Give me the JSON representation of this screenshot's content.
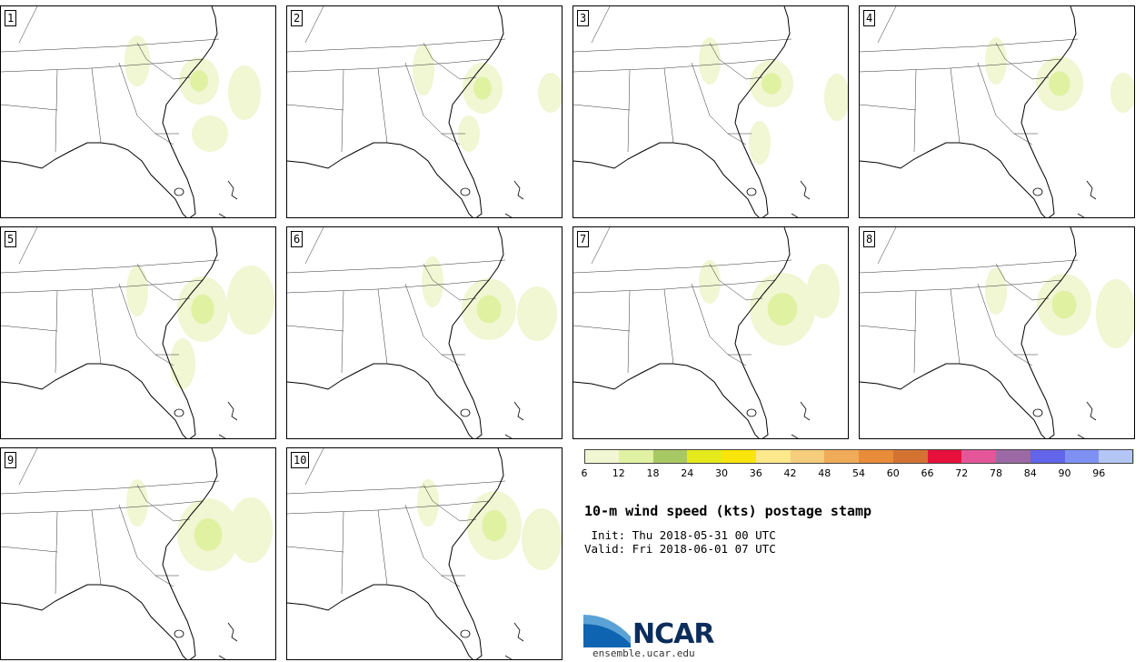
{
  "members": [
    {
      "label": "1",
      "blobs": [
        [
          218,
          82,
          22,
          26
        ],
        [
          268,
          95,
          18,
          30
        ],
        [
          150,
          60,
          14,
          28
        ],
        [
          230,
          140,
          20,
          20
        ]
      ]
    },
    {
      "label": "2",
      "blobs": [
        [
          215,
          90,
          22,
          28
        ],
        [
          290,
          95,
          14,
          22
        ],
        [
          150,
          70,
          12,
          28
        ],
        [
          200,
          140,
          12,
          20
        ]
      ]
    },
    {
      "label": "3",
      "blobs": [
        [
          218,
          85,
          24,
          26
        ],
        [
          290,
          100,
          14,
          26
        ],
        [
          150,
          60,
          12,
          26
        ],
        [
          205,
          150,
          12,
          24
        ]
      ]
    },
    {
      "label": "4",
      "blobs": [
        [
          220,
          85,
          26,
          30
        ],
        [
          290,
          95,
          14,
          22
        ],
        [
          150,
          60,
          12,
          26
        ]
      ]
    },
    {
      "label": "5",
      "blobs": [
        [
          222,
          90,
          28,
          36
        ],
        [
          275,
          80,
          26,
          38
        ],
        [
          150,
          70,
          12,
          28
        ],
        [
          200,
          150,
          14,
          28
        ]
      ]
    },
    {
      "label": "6",
      "blobs": [
        [
          222,
          90,
          30,
          34
        ],
        [
          275,
          95,
          22,
          30
        ],
        [
          160,
          60,
          12,
          28
        ]
      ]
    },
    {
      "label": "7",
      "blobs": [
        [
          230,
          90,
          36,
          40
        ],
        [
          275,
          70,
          18,
          30
        ],
        [
          150,
          60,
          12,
          24
        ]
      ]
    },
    {
      "label": "8",
      "blobs": [
        [
          225,
          85,
          30,
          34
        ],
        [
          282,
          95,
          22,
          38
        ],
        [
          150,
          70,
          12,
          26
        ]
      ]
    },
    {
      "label": "9",
      "blobs": [
        [
          228,
          95,
          34,
          40
        ],
        [
          275,
          90,
          24,
          36
        ],
        [
          150,
          60,
          12,
          26
        ]
      ]
    },
    {
      "label": "10",
      "blobs": [
        [
          228,
          85,
          30,
          38
        ],
        [
          280,
          100,
          22,
          34
        ],
        [
          155,
          60,
          12,
          26
        ]
      ]
    }
  ],
  "colorbar": {
    "colors": [
      "#f1f6d3",
      "#e0f1a2",
      "#a8c864",
      "#e4ea1b",
      "#f9e50c",
      "#fbe98b",
      "#f5cd7c",
      "#f0ab59",
      "#e98c39",
      "#d47232",
      "#e8113d",
      "#e35799",
      "#9b69a4",
      "#6264ea",
      "#7e91f3",
      "#b3c6f6"
    ],
    "ticks": [
      "6",
      "12",
      "18",
      "24",
      "30",
      "36",
      "42",
      "48",
      "54",
      "60",
      "66",
      "72",
      "78",
      "84",
      "90",
      "96"
    ]
  },
  "title": "10-m wind speed (kts) postage stamp",
  "init": " Init: Thu 2018-05-31 00 UTC",
  "valid": "Valid: Fri 2018-06-01 07 UTC",
  "logo": {
    "text": "NCAR",
    "url": "ensemble.ucar.edu"
  }
}
